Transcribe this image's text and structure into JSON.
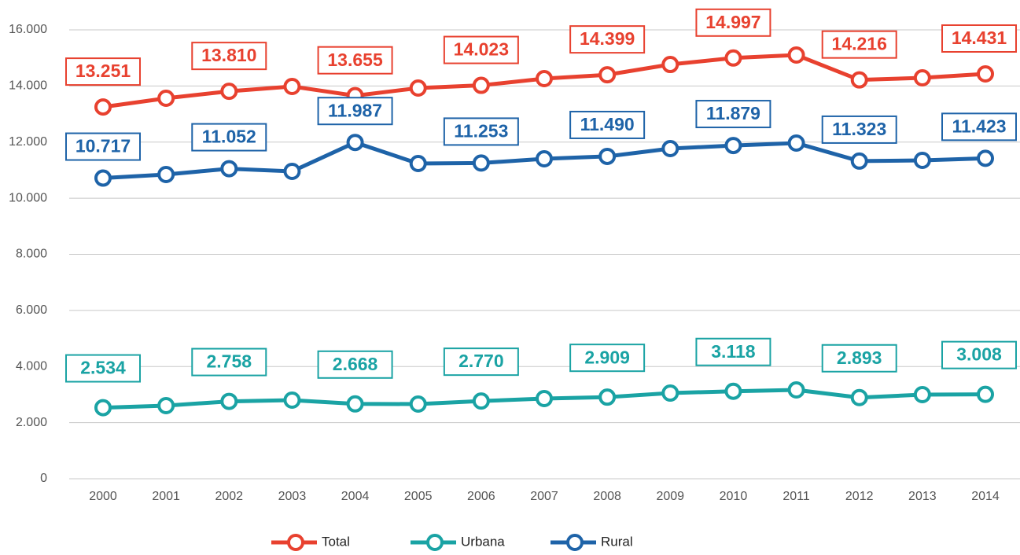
{
  "chart_data": {
    "type": "line",
    "categories": [
      "2000",
      "2001",
      "2002",
      "2003",
      "2004",
      "2005",
      "2006",
      "2007",
      "2008",
      "2009",
      "2010",
      "2011",
      "2012",
      "2013",
      "2014"
    ],
    "series": [
      {
        "name": "Total",
        "color": "#e8412f",
        "values": [
          13251,
          13562,
          13810,
          13982,
          13655,
          13926,
          14023,
          14262,
          14399,
          14766,
          14997,
          15103,
          14216,
          14290,
          14431
        ],
        "value_labels": [
          "13.251",
          null,
          "13.810",
          null,
          "13.655",
          null,
          "14.023",
          null,
          "14.399",
          null,
          "14.997",
          null,
          "14.216",
          null,
          "14.431"
        ]
      },
      {
        "name": "Urbana",
        "color": "#1aa3a4",
        "values": [
          2534,
          2606,
          2758,
          2802,
          2668,
          2662,
          2770,
          2858,
          2909,
          3054,
          3118,
          3166,
          2893,
          2998,
          3008
        ],
        "value_labels": [
          "2.534",
          null,
          "2.758",
          null,
          "2.668",
          null,
          "2.770",
          null,
          "2.909",
          null,
          "3.118",
          null,
          "2.893",
          null,
          "3.008"
        ]
      },
      {
        "name": "Rural",
        "color": "#1e63a8",
        "values": [
          10717,
          10844,
          11052,
          10956,
          11987,
          11236,
          11253,
          11404,
          11490,
          11768,
          11879,
          11965,
          11323,
          11348,
          11423
        ],
        "value_labels": [
          "10.717",
          null,
          "11.052",
          null,
          "11.987",
          null,
          "11.253",
          null,
          "11.490",
          null,
          "11.879",
          null,
          "11.323",
          null,
          "11.423"
        ]
      }
    ],
    "ylim": [
      0,
      16000
    ],
    "yticks": [
      0,
      {
        "value": 2000,
        "label": "2.000"
      },
      {
        "value": 4000,
        "label": "4.000"
      },
      {
        "value": 6000,
        "label": "6.000"
      },
      {
        "value": 8000,
        "label": "8.000"
      },
      {
        "value": 10000,
        "label": "10.000"
      },
      {
        "value": 12000,
        "label": "12.000"
      },
      {
        "value": 14000,
        "label": "14.000"
      },
      {
        "value": 16000,
        "label": "16.000"
      }
    ],
    "grid": true,
    "legend": "bottom"
  }
}
